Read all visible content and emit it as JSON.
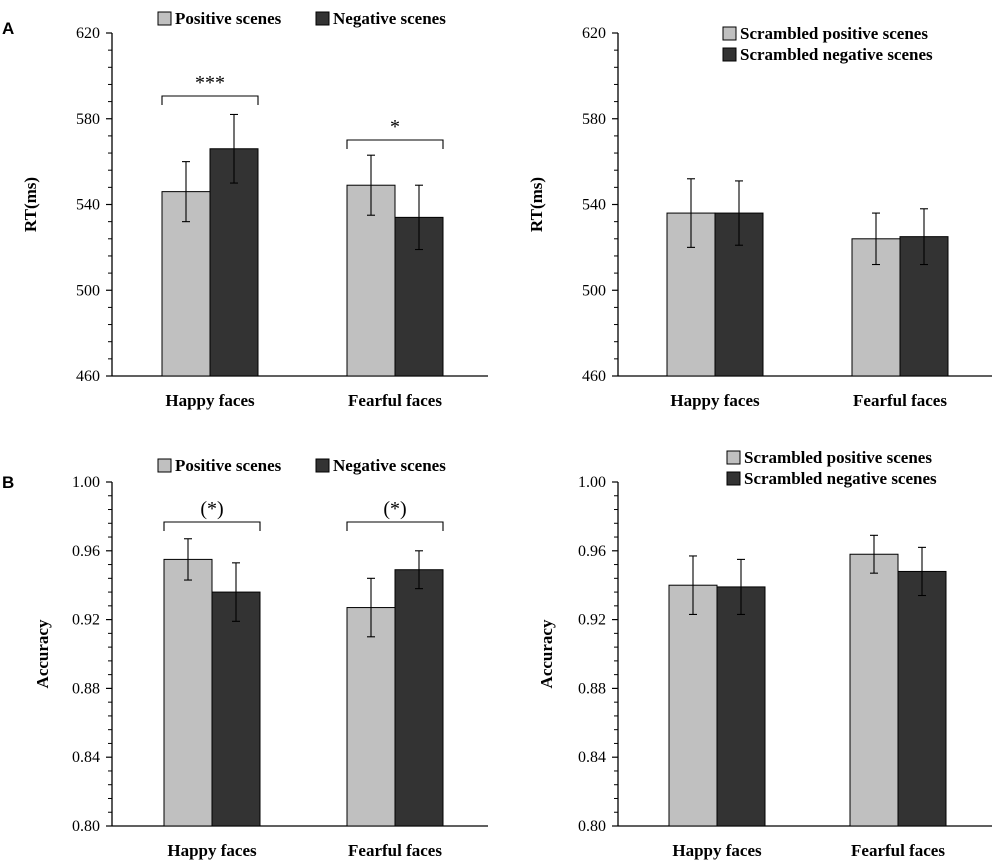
{
  "panel_labels": [
    "A",
    "B"
  ],
  "colors": {
    "light": "#c0c0c0",
    "dark": "#333333",
    "axis": "#000000"
  },
  "chart_data": [
    {
      "type": "bar",
      "panel": "A",
      "ylabel": "RT(ms)",
      "ylim": [
        460,
        620
      ],
      "yticks": [
        460,
        500,
        540,
        580,
        620
      ],
      "ytick_labels": [
        "460",
        "500",
        "540",
        "580",
        "620"
      ],
      "categories": [
        "Happy faces",
        "Fearful faces"
      ],
      "series": [
        {
          "name": "Positive scenes",
          "values": [
            546,
            549
          ],
          "errors": [
            14,
            14
          ]
        },
        {
          "name": "Negative scenes",
          "values": [
            566,
            534
          ],
          "errors": [
            16,
            15
          ]
        }
      ],
      "legend": {
        "placement": "top",
        "layout": "row"
      },
      "significance": [
        {
          "category": 0,
          "label": "***"
        },
        {
          "category": 1,
          "label": "*"
        }
      ]
    },
    {
      "type": "bar",
      "panel": "A",
      "ylabel": "RT(ms)",
      "ylim": [
        460,
        620
      ],
      "yticks": [
        460,
        500,
        540,
        580,
        620
      ],
      "ytick_labels": [
        "460",
        "500",
        "540",
        "580",
        "620"
      ],
      "categories": [
        "Happy faces",
        "Fearful faces"
      ],
      "series": [
        {
          "name": "Scrambled positive scenes",
          "values": [
            536,
            524
          ],
          "errors": [
            16,
            12
          ]
        },
        {
          "name": "Scrambled negative scenes",
          "values": [
            536,
            525
          ],
          "errors": [
            15,
            13
          ]
        }
      ],
      "legend": {
        "placement": "top-right",
        "layout": "column"
      },
      "significance": []
    },
    {
      "type": "bar",
      "panel": "B",
      "ylabel": "Accuracy",
      "ylim": [
        0.8,
        1.0
      ],
      "yticks": [
        0.8,
        0.84,
        0.88,
        0.92,
        0.96,
        1.0
      ],
      "ytick_labels": [
        "0.80",
        "0.84",
        "0.88",
        "0.92",
        "0.96",
        "1.00"
      ],
      "categories": [
        "Happy faces",
        "Fearful faces"
      ],
      "series": [
        {
          "name": "Positive scenes",
          "values": [
            0.955,
            0.927
          ],
          "errors": [
            0.012,
            0.017
          ]
        },
        {
          "name": "Negative scenes",
          "values": [
            0.936,
            0.949
          ],
          "errors": [
            0.017,
            0.011
          ]
        }
      ],
      "legend": {
        "placement": "top",
        "layout": "row"
      },
      "significance": [
        {
          "category": 0,
          "label": "(*)"
        },
        {
          "category": 1,
          "label": "(*)"
        }
      ]
    },
    {
      "type": "bar",
      "panel": "B",
      "ylabel": "Accuracy",
      "ylim": [
        0.8,
        1.0
      ],
      "yticks": [
        0.8,
        0.84,
        0.88,
        0.92,
        0.96,
        1.0
      ],
      "ytick_labels": [
        "0.80",
        "0.84",
        "0.88",
        "0.92",
        "0.96",
        "1.00"
      ],
      "categories": [
        "Happy faces",
        "Fearful faces"
      ],
      "series": [
        {
          "name": "Scrambled positive scenes",
          "values": [
            0.94,
            0.958
          ],
          "errors": [
            0.017,
            0.011
          ]
        },
        {
          "name": "Scrambled negative scenes",
          "values": [
            0.939,
            0.948
          ],
          "errors": [
            0.016,
            0.014
          ]
        }
      ],
      "legend": {
        "placement": "top-right",
        "layout": "column"
      },
      "significance": []
    }
  ]
}
